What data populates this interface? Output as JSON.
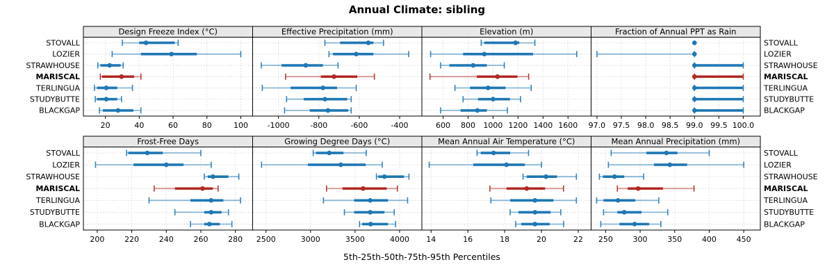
{
  "title": "Annual Climate: sibling",
  "xlabel": "5th-25th-50th-75th-95th Percentiles",
  "stations": [
    "STOVALL",
    "LOZIER",
    "STRAWHOUSE",
    "MARISCAL",
    "TERLINGUA",
    "STUDYBUTTE",
    "BLACKGAP"
  ],
  "highlight_station": "MARISCAL",
  "colors": {
    "series": "#1f77b4",
    "highlight": "#b22822",
    "strip_bg": "#e8e8e8",
    "grid": "#c6c6c6",
    "border": "#000000"
  },
  "chart_data": {
    "type": "percentile-interval-dotplot",
    "percentiles": [
      5,
      25,
      50,
      75,
      95
    ],
    "layout": "2 rows x 4 columns, station labels on both sides, MARISCAL bold/red",
    "panels": [
      {
        "key": "design-freeze-index",
        "title": "Design Freeze Index (°C)",
        "row": 0,
        "col": 0,
        "domain": [
          7,
          107
        ],
        "ticks": [
          20,
          40,
          60,
          80,
          100
        ],
        "tick_labels": [
          "20",
          "40",
          "60",
          "80",
          "100"
        ],
        "values": {
          "STOVALL": [
            30,
            40,
            44,
            61,
            63
          ],
          "LOZIER": [
            24,
            41,
            59,
            74,
            100
          ],
          "STRAWHOUSE": [
            15.5,
            17,
            22.5,
            29,
            30.5
          ],
          "MARISCAL": [
            17,
            18,
            29.5,
            37,
            41
          ],
          "TERLINGUA": [
            13.5,
            15,
            20.5,
            27,
            36
          ],
          "STUDYBUTTE": [
            14,
            15,
            20.5,
            27,
            29.5
          ],
          "BLACKGAP": [
            16.5,
            18.5,
            27.5,
            36.5,
            41
          ]
        }
      },
      {
        "key": "effective-precipitation",
        "title": "Effective Precipitation (mm)",
        "row": 0,
        "col": 1,
        "domain": [
          -1128,
          -290
        ],
        "ticks": [
          -1000,
          -800,
          -600,
          -400
        ],
        "tick_labels": [
          "-1000",
          "-800",
          "-600",
          "-400"
        ],
        "values": {
          "STOVALL": [
            -770,
            -695,
            -555,
            -530,
            -480
          ],
          "LOZIER": [
            -750,
            -730,
            -615,
            -530,
            -355
          ],
          "STRAWHOUSE": [
            -1085,
            -985,
            -865,
            -780,
            -705
          ],
          "MARISCAL": [
            -965,
            -790,
            -725,
            -610,
            -525
          ],
          "TERLINGUA": [
            -1080,
            -940,
            -780,
            -710,
            -615
          ],
          "STUDYBUTTE": [
            -960,
            -875,
            -770,
            -660,
            -640
          ],
          "BLACKGAP": [
            -970,
            -845,
            -755,
            -655,
            -640
          ]
        }
      },
      {
        "key": "elevation",
        "title": "Elevation (m)",
        "row": 0,
        "col": 2,
        "domain": [
          430,
          1785
        ],
        "ticks": [
          600,
          800,
          1000,
          1200,
          1400,
          1600
        ],
        "tick_labels": [
          "600",
          "800",
          "1000",
          "1200",
          "1400",
          "1600"
        ],
        "values": {
          "STOVALL": [
            905,
            930,
            1180,
            1210,
            1335
          ],
          "LOZIER": [
            500,
            760,
            930,
            1320,
            1670
          ],
          "STRAWHOUSE": [
            580,
            650,
            840,
            950,
            1090
          ],
          "MARISCAL": [
            495,
            870,
            1035,
            1195,
            1285
          ],
          "TERLINGUA": [
            695,
            815,
            960,
            1100,
            1305
          ],
          "STUDYBUTTE": [
            760,
            880,
            1000,
            1135,
            1220
          ],
          "BLACKGAP": [
            580,
            740,
            875,
            950,
            1115
          ]
        }
      },
      {
        "key": "fraction-ppt-rain",
        "title": "Fraction of Annual PPT as Rain",
        "row": 0,
        "col": 3,
        "domain": [
          96.88,
          100.35
        ],
        "ticks": [
          97,
          97.5,
          98,
          98.5,
          99,
          99.5,
          100
        ],
        "tick_labels": [
          "97.0",
          "97.5",
          "98.0",
          "98.5",
          "99.0",
          "99.5",
          "100.0"
        ],
        "values": {
          "STOVALL": [
            99,
            99,
            99,
            99,
            99
          ],
          "LOZIER": [
            97,
            99,
            99,
            99,
            99
          ],
          "STRAWHOUSE": [
            99,
            99,
            99,
            100,
            100
          ],
          "MARISCAL": [
            99,
            99,
            99,
            100,
            100
          ],
          "TERLINGUA": [
            99,
            99,
            99,
            100,
            100
          ],
          "STUDYBUTTE": [
            99,
            99,
            99,
            100,
            100
          ],
          "BLACKGAP": [
            99,
            99,
            99,
            100,
            100
          ]
        }
      },
      {
        "key": "frost-free-days",
        "title": "Frost-Free Days",
        "row": 1,
        "col": 0,
        "domain": [
          192,
          290
        ],
        "ticks": [
          200,
          220,
          240,
          260,
          280
        ],
        "tick_labels": [
          "200",
          "220",
          "240",
          "260",
          "280"
        ],
        "values": {
          "STOVALL": [
            217,
            218,
            229,
            238,
            260
          ],
          "LOZIER": [
            199,
            221,
            240,
            250,
            266
          ],
          "STRAWHOUSE": [
            262,
            264,
            267,
            276,
            282
          ],
          "MARISCAL": [
            233,
            245,
            261,
            267,
            270
          ],
          "TERLINGUA": [
            230,
            254,
            266,
            273,
            283
          ],
          "STUDYBUTTE": [
            245,
            262,
            266,
            272,
            276
          ],
          "BLACKGAP": [
            254,
            262,
            265,
            271,
            278
          ]
        }
      },
      {
        "key": "growing-degree-days",
        "title": "Growing Degree Days (°C)",
        "row": 1,
        "col": 1,
        "domain": [
          2350,
          4250
        ],
        "ticks": [
          2500,
          3000,
          3500,
          4000
        ],
        "tick_labels": [
          "2500",
          "3000",
          "3500",
          "4000"
        ],
        "values": {
          "STOVALL": [
            3030,
            3060,
            3210,
            3370,
            3625
          ],
          "LOZIER": [
            2450,
            2970,
            3340,
            3620,
            3805
          ],
          "STRAWHOUSE": [
            3740,
            3760,
            3830,
            4050,
            4105
          ],
          "MARISCAL": [
            3180,
            3360,
            3590,
            3855,
            3975
          ],
          "TERLINGUA": [
            3145,
            3490,
            3670,
            3870,
            4090
          ],
          "STUDYBUTTE": [
            3380,
            3490,
            3670,
            3830,
            3940
          ],
          "BLACKGAP": [
            3550,
            3580,
            3675,
            3870,
            3955
          ]
        }
      },
      {
        "key": "mean-annual-air-temperature",
        "title": "Mean Annual Air Temperature (°C)",
        "row": 1,
        "col": 2,
        "domain": [
          13.5,
          22.7
        ],
        "ticks": [
          14,
          16,
          18,
          20,
          22
        ],
        "tick_labels": [
          "14",
          "16",
          "18",
          "20",
          "22"
        ],
        "values": {
          "STOVALL": [
            16.5,
            16.7,
            17.4,
            18.3,
            19.3
          ],
          "LOZIER": [
            13.9,
            16.3,
            18.1,
            19.1,
            20.0
          ],
          "STRAWHOUSE": [
            19.0,
            19.2,
            20.25,
            20.85,
            21.9
          ],
          "MARISCAL": [
            17.2,
            18.1,
            19.2,
            20.2,
            21.2
          ],
          "TERLINGUA": [
            17.25,
            18.3,
            19.65,
            20.65,
            21.9
          ],
          "STUDYBUTTE": [
            18.3,
            18.75,
            19.65,
            20.5,
            21.05
          ],
          "BLACKGAP": [
            18.6,
            18.9,
            19.65,
            20.45,
            21.2
          ]
        }
      },
      {
        "key": "mean-annual-precipitation",
        "title": "Mean Annual Precipitation (mm)",
        "row": 1,
        "col": 3,
        "domain": [
          229,
          474
        ],
        "ticks": [
          250,
          300,
          350,
          400,
          450
        ],
        "tick_labels": [
          "250",
          "300",
          "350",
          "400",
          "450"
        ],
        "values": {
          "STOVALL": [
            258,
            309,
            338,
            354,
            400
          ],
          "LOZIER": [
            254,
            320,
            343,
            368,
            450
          ],
          "STRAWHOUSE": [
            241,
            246,
            263,
            277,
            305
          ],
          "MARISCAL": [
            267,
            282,
            297,
            333,
            378
          ],
          "TERLINGUA": [
            237,
            247,
            268,
            293,
            327
          ],
          "STUDYBUTTE": [
            247,
            267,
            277,
            302,
            340
          ],
          "BLACKGAP": [
            243,
            270,
            292,
            313,
            330
          ]
        }
      }
    ]
  }
}
